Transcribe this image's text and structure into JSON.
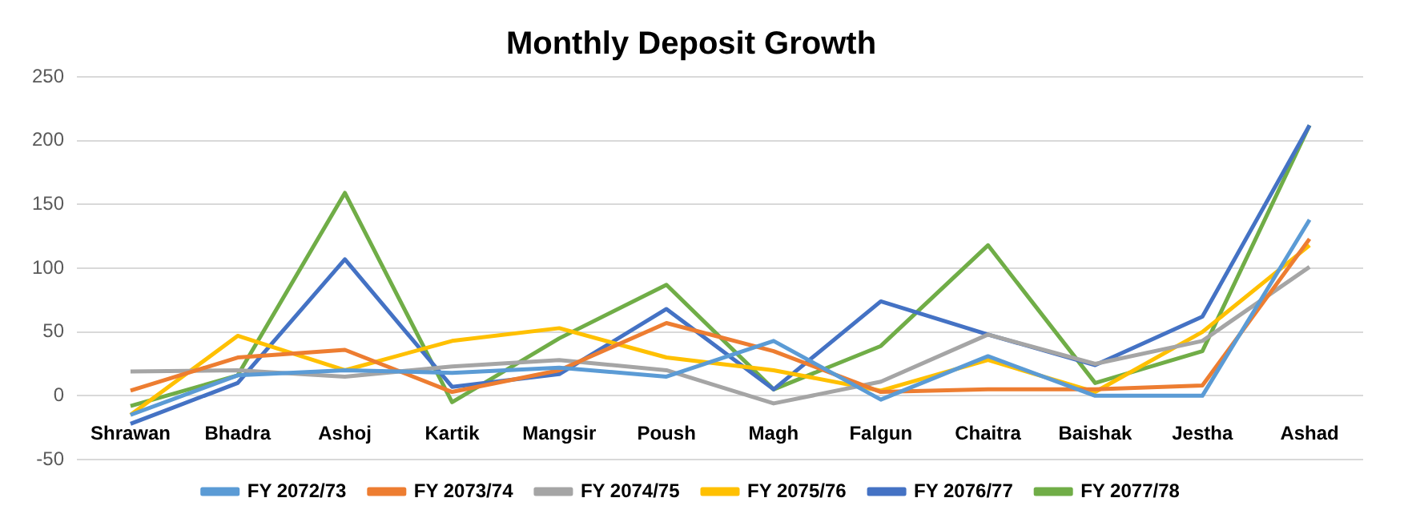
{
  "chart_data": {
    "type": "line",
    "title": "Monthly Deposit Growth",
    "categories": [
      "Shrawan",
      "Bhadra",
      "Ashoj",
      "Kartik",
      "Mangsir",
      "Poush",
      "Magh",
      "Falgun",
      "Chaitra",
      "Baishak",
      "Jestha",
      "Ashad"
    ],
    "series": [
      {
        "name": "FY 2072/73",
        "color": "#5b9bd5",
        "values": [
          -15,
          16,
          20,
          18,
          22,
          15,
          43,
          -3,
          31,
          0,
          0,
          138
        ]
      },
      {
        "name": "FY 2073/74",
        "color": "#ed7d31",
        "values": [
          4,
          30,
          36,
          3,
          20,
          57,
          35,
          3,
          5,
          5,
          8,
          123
        ]
      },
      {
        "name": "FY 2074/75",
        "color": "#a5a5a5",
        "values": [
          19,
          20,
          15,
          23,
          28,
          20,
          -6,
          11,
          48,
          25,
          43,
          101
        ]
      },
      {
        "name": "FY 2075/76",
        "color": "#ffc000",
        "values": [
          -15,
          47,
          20,
          43,
          53,
          30,
          20,
          4,
          28,
          3,
          50,
          118
        ]
      },
      {
        "name": "FY 2076/77",
        "color": "#4472c4",
        "values": [
          -22,
          10,
          107,
          7,
          17,
          68,
          5,
          74,
          48,
          24,
          62,
          212
        ]
      },
      {
        "name": "FY 2077/78",
        "color": "#70ad47",
        "values": [
          -8,
          16,
          159,
          -5,
          45,
          87,
          5,
          39,
          118,
          10,
          35,
          212
        ]
      }
    ],
    "ylim": [
      -50,
      250
    ],
    "yticks": [
      -50,
      0,
      50,
      100,
      150,
      200,
      250
    ],
    "grid": "y",
    "legend": "bottom",
    "marker": "none",
    "line_style": "solid"
  }
}
